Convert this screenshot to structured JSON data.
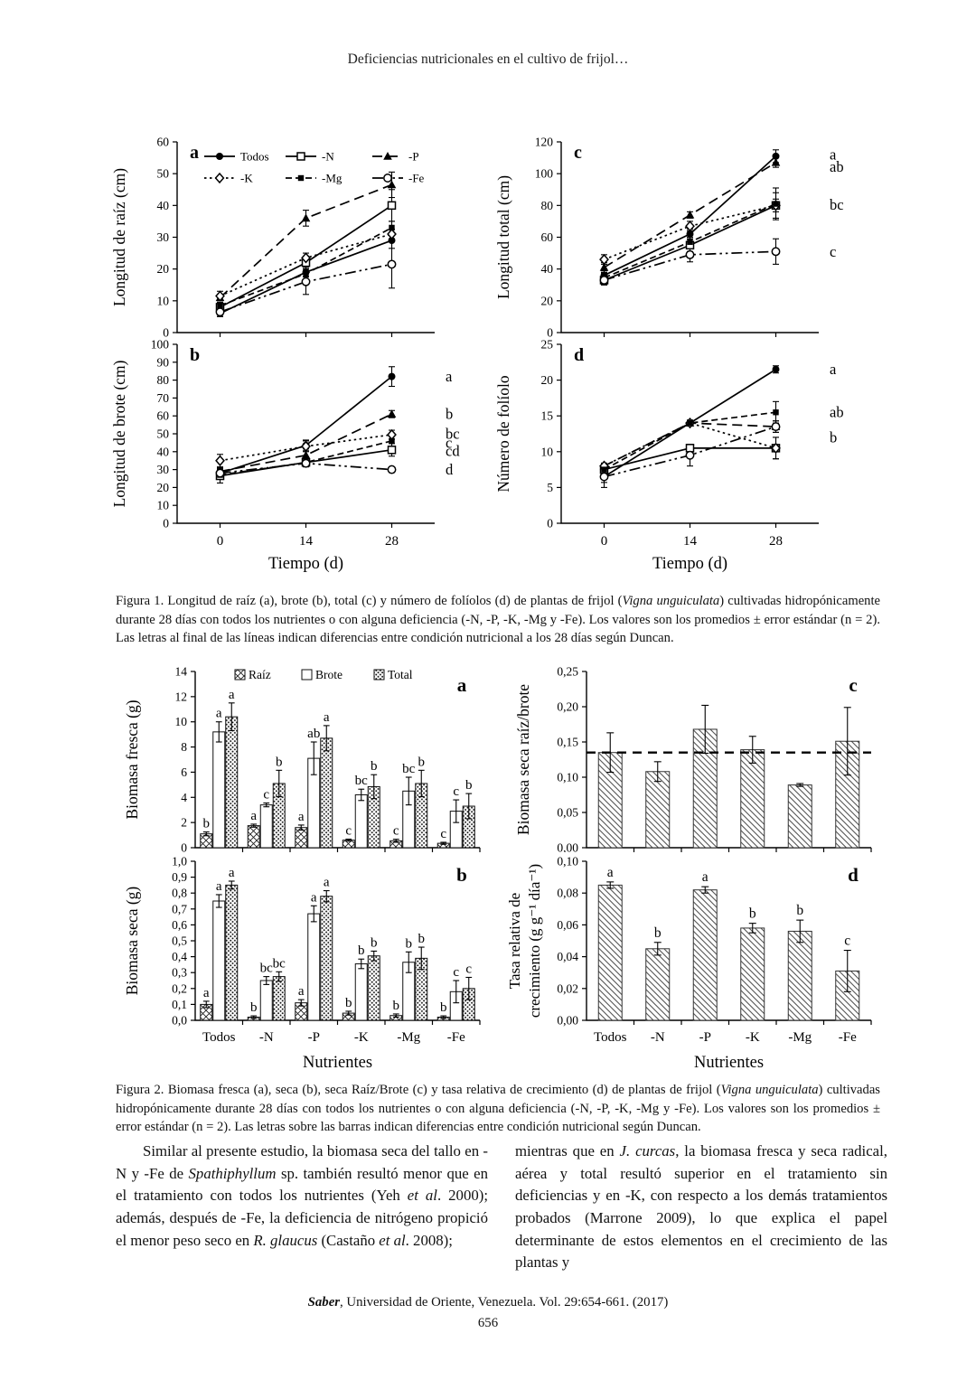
{
  "header": {
    "running_title": "Deficiencias nutricionales en el cultivo de frijol…"
  },
  "figure1": {
    "caption": [
      {
        "t": "Figura 1. Longitud de raíz (a), brote (b), total (c) y número de folíolos (d) de plantas de frijol ("
      },
      {
        "t": "Vigna unguiculata",
        "i": true
      },
      {
        "t": ") cultivadas hidropónicamente durante 28 días con todos los nutrientes o con alguna deficiencia (-N, -P, -K, -Mg y -Fe). Los valores son los promedios ± error estándar (n = 2). Las letras al final de las líneas indican diferencias entre condición nutricional a los 28 días según Duncan."
      }
    ]
  },
  "figure2": {
    "caption": [
      {
        "t": "Figura 2. Biomasa fresca (a), seca (b), seca Raíz/Brote (c) y tasa relativa de crecimiento (d) de plantas de frijol ("
      },
      {
        "t": "Vigna unguiculata",
        "i": true
      },
      {
        "t": ") cultivadas hidropónicamente durante 28 días con todos los nutrientes o con alguna deficiencia (-N, -P, -K, -Mg y -Fe). Los valores son los promedios ± error estándar (n = 2). Las letras sobre las barras indican diferencias entre condición nutricional según Duncan."
      }
    ]
  },
  "body": {
    "left": [
      {
        "t": "Similar al presente estudio, la biomasa seca del tallo en -N y -Fe de "
      },
      {
        "t": "Spathiphyllum",
        "i": true
      },
      {
        "t": " sp. también resultó menor que en el tratamiento con todos los nutrientes (Yeh "
      },
      {
        "t": "et al",
        "i": true
      },
      {
        "t": ". 2000); además, después de -Fe, la deficiencia de nitrógeno propició el menor peso seco en "
      },
      {
        "t": "R. glaucus",
        "i": true
      },
      {
        "t": " (Castaño "
      },
      {
        "t": "et al",
        "i": true
      },
      {
        "t": ". 2008);"
      }
    ],
    "right": [
      {
        "t": "mientras que en "
      },
      {
        "t": "J. curcas",
        "i": true
      },
      {
        "t": ", la biomasa fresca y seca radical, aérea y total resultó superior en el tratamiento sin deficiencias y en -K, con respecto a los demás tratamientos probados (Marrone 2009), lo que explica el papel determinante de estos elementos en el crecimiento de las plantas y"
      }
    ]
  },
  "footer": {
    "line": [
      {
        "t": "Saber",
        "b": true,
        "i": true
      },
      {
        "t": ", Universidad de Oriente, Venezuela. Vol. 29:654-661. (2017)"
      }
    ],
    "page_number": "656"
  },
  "chart_data": [
    {
      "figure": 1,
      "panel": "a",
      "type": "line",
      "ylabel": "Longitud de raíz (cm)",
      "ymax": 60,
      "yticks": [
        "0",
        "10",
        "20",
        "30",
        "40",
        "50",
        "60"
      ],
      "x": [
        "0",
        "14",
        "28"
      ],
      "xlabel": "Tiempo (d)",
      "show_x": false,
      "legend": true,
      "series": [
        {
          "name": "Todos",
          "marker": "circle-filled",
          "dash": "",
          "values": [
            6,
            19,
            29
          ],
          "err": [
            1,
            1.5,
            2.5
          ]
        },
        {
          "name": "-N",
          "marker": "square-open",
          "dash": "",
          "values": [
            8,
            22,
            40
          ],
          "err": [
            1,
            2,
            5
          ]
        },
        {
          "name": "-P",
          "marker": "triangle-filled",
          "dash": "11,6",
          "values": [
            11,
            36,
            46.5
          ],
          "err": [
            1,
            2.5,
            4
          ]
        },
        {
          "name": "-K",
          "marker": "diamond-open",
          "dash": "2.5,3.5",
          "values": [
            11.5,
            23.5,
            31
          ],
          "err": [
            1.5,
            1.5,
            1.5
          ]
        },
        {
          "name": "-Mg",
          "marker": "square-filled",
          "dash": "7,4",
          "values": [
            8.5,
            18.5,
            33
          ],
          "err": [
            1,
            1,
            2
          ]
        },
        {
          "name": "-Fe",
          "marker": "circle-open",
          "dash": "12,4,2.5,4,2.5,4",
          "values": [
            6.5,
            16,
            21.5
          ],
          "err": [
            1,
            4,
            7.5
          ]
        }
      ],
      "end_labels": []
    },
    {
      "figure": 1,
      "panel": "b",
      "type": "line",
      "ylabel": "Longitud de brote (cm)",
      "ymax": 100,
      "yticks": [
        "0",
        "10",
        "20",
        "30",
        "40",
        "50",
        "60",
        "70",
        "80",
        "90",
        "100"
      ],
      "x": [
        "0",
        "14",
        "28"
      ],
      "xlabel": "Tiempo (d)",
      "show_x": true,
      "legend": false,
      "series": [
        {
          "name": "Todos",
          "marker": "circle-filled",
          "dash": "",
          "values": [
            28,
            43.5,
            82
          ],
          "err": [
            2,
            3,
            5.5
          ]
        },
        {
          "name": "-N",
          "marker": "square-open",
          "dash": "",
          "values": [
            26.5,
            34,
            41
          ],
          "err": [
            4,
            2,
            3.5
          ]
        },
        {
          "name": "-P",
          "marker": "triangle-filled",
          "dash": "11,6",
          "values": [
            29,
            38,
            61
          ],
          "err": [
            2,
            3.5,
            2
          ]
        },
        {
          "name": "-K",
          "marker": "diamond-open",
          "dash": "2.5,3.5",
          "values": [
            35,
            43,
            49.5
          ],
          "err": [
            3.5,
            3,
            2.5
          ]
        },
        {
          "name": "-Mg",
          "marker": "square-filled",
          "dash": "7,4",
          "values": [
            27,
            34,
            46
          ],
          "err": [
            2,
            2,
            3
          ]
        },
        {
          "name": "-Fe",
          "marker": "circle-open",
          "dash": "12,4,2.5,4,2.5,4",
          "values": [
            28,
            33.5,
            30
          ],
          "err": [
            2,
            2,
            1.5
          ]
        }
      ],
      "end_labels": [
        {
          "t": "a",
          "v": 82
        },
        {
          "t": "b",
          "v": 61
        },
        {
          "t": "bc",
          "v": 50
        },
        {
          "t": "c",
          "v": 45
        },
        {
          "t": "cd",
          "v": 40.5
        },
        {
          "t": "d",
          "v": 30
        }
      ]
    },
    {
      "figure": 1,
      "panel": "c",
      "type": "line",
      "ylabel": "Longitud total (cm)",
      "ymax": 120,
      "yticks": [
        "0",
        "20",
        "40",
        "60",
        "80",
        "100",
        "120"
      ],
      "x": [
        "0",
        "14",
        "28"
      ],
      "xlabel": "Tiempo (d)",
      "show_x": false,
      "legend": false,
      "series": [
        {
          "name": "Todos",
          "marker": "circle-filled",
          "dash": "",
          "values": [
            36,
            62,
            111
          ],
          "err": [
            3,
            3,
            4
          ]
        },
        {
          "name": "-N",
          "marker": "square-open",
          "dash": "",
          "values": [
            33,
            55,
            80
          ],
          "err": [
            3,
            4,
            8
          ]
        },
        {
          "name": "-P",
          "marker": "triangle-filled",
          "dash": "11,6",
          "values": [
            41,
            74,
            107
          ],
          "err": [
            3,
            2,
            3
          ]
        },
        {
          "name": "-K",
          "marker": "diamond-open",
          "dash": "2.5,3.5",
          "values": [
            46,
            67,
            80
          ],
          "err": [
            3,
            3,
            4
          ]
        },
        {
          "name": "-Mg",
          "marker": "square-filled",
          "dash": "7,4",
          "values": [
            34.5,
            57,
            81
          ],
          "err": [
            3,
            3,
            10
          ]
        },
        {
          "name": "-Fe",
          "marker": "circle-open",
          "dash": "12,4,2.5,4,2.5,4",
          "values": [
            33,
            49,
            51
          ],
          "err": [
            3,
            4.5,
            8
          ]
        }
      ],
      "end_labels": [
        {
          "t": "a",
          "v": 112
        },
        {
          "t": "ab",
          "v": 104.5
        },
        {
          "t": "bc",
          "v": 80.5
        },
        {
          "t": "c",
          "v": 51
        }
      ]
    },
    {
      "figure": 1,
      "panel": "d",
      "type": "line",
      "ylabel": "Número de folíolo",
      "ymax": 25,
      "yticks": [
        "0",
        "5",
        "10",
        "15",
        "20",
        "25"
      ],
      "x": [
        "0",
        "14",
        "28"
      ],
      "xlabel": "Tiempo (d)",
      "show_x": true,
      "legend": false,
      "series": [
        {
          "name": "Todos",
          "marker": "circle-filled",
          "dash": "",
          "values": [
            6.5,
            14,
            21.5
          ],
          "err": [
            0.8,
            0.4,
            0.5
          ]
        },
        {
          "name": "-N",
          "marker": "square-open",
          "dash": "",
          "values": [
            7.5,
            10.5,
            10.5
          ],
          "err": [
            0.5,
            0.5,
            1.5
          ]
        },
        {
          "name": "-P",
          "marker": "triangle-filled",
          "dash": "11,6",
          "values": [
            8,
            14,
            13.5
          ],
          "err": [
            0.4,
            0.4,
            0.8
          ]
        },
        {
          "name": "-K",
          "marker": "diamond-open",
          "dash": "2.5,3.5",
          "values": [
            8,
            14,
            10.5
          ],
          "err": [
            0.4,
            0.4,
            1.5
          ]
        },
        {
          "name": "-Mg",
          "marker": "square-filled",
          "dash": "7,4",
          "values": [
            7.5,
            14,
            15.5
          ],
          "err": [
            0.5,
            0.4,
            1.5
          ]
        },
        {
          "name": "-Fe",
          "marker": "circle-open",
          "dash": "12,4,2.5,4,2.5,4",
          "values": [
            6.5,
            9.5,
            13.5
          ],
          "err": [
            1.5,
            1.5,
            0.8
          ]
        }
      ],
      "end_labels": [
        {
          "t": "a",
          "v": 21.5
        },
        {
          "t": "ab",
          "v": 15.5
        },
        {
          "t": "b",
          "v": 12
        }
      ]
    },
    {
      "figure": 2,
      "panel": "a",
      "type": "grouped-bar",
      "ylabel": "Biomasa fresca (g)",
      "ymax": 14,
      "yticks": [
        "0",
        "2",
        "4",
        "6",
        "8",
        "10",
        "12",
        "14"
      ],
      "categories": [
        "Todos",
        "-N",
        "-P",
        "-K",
        "-Mg",
        "-Fe"
      ],
      "xlabel": "Nutrientes",
      "show_x": false,
      "legend": [
        "Raíz",
        "Brote",
        "Total"
      ],
      "series": [
        {
          "name": "Raíz",
          "pattern": "cross",
          "values": [
            1.1,
            1.75,
            1.6,
            0.6,
            0.55,
            0.35
          ],
          "err": [
            0.15,
            0.12,
            0.2,
            0.08,
            0.12,
            0.08
          ],
          "letters": [
            "b",
            "a",
            "a",
            "c",
            "c",
            "c"
          ]
        },
        {
          "name": "Brote",
          "pattern": "none",
          "values": [
            9.2,
            3.4,
            7.1,
            4.2,
            4.5,
            2.9
          ],
          "err": [
            0.8,
            0.15,
            1.3,
            0.45,
            1.1,
            0.9
          ],
          "letters": [
            "a",
            "c",
            "ab",
            "bc",
            "bc",
            "c"
          ]
        },
        {
          "name": "Total",
          "pattern": "dots",
          "values": [
            10.4,
            5.1,
            8.7,
            4.85,
            5.1,
            3.3
          ],
          "err": [
            1.1,
            1.05,
            1.0,
            0.95,
            1.05,
            1.0
          ],
          "letters": [
            "a",
            "b",
            "a",
            "b",
            "b",
            "b"
          ]
        }
      ]
    },
    {
      "figure": 2,
      "panel": "b",
      "type": "grouped-bar",
      "ylabel": "Biomasa seca (g)",
      "ymax": 1.0,
      "yticks": [
        "0,0",
        "0,1",
        "0,2",
        "0,3",
        "0,4",
        "0,5",
        "0,6",
        "0,7",
        "0,8",
        "0,9",
        "1,0"
      ],
      "categories": [
        "Todos",
        "-N",
        "-P",
        "-K",
        "-Mg",
        "-Fe"
      ],
      "xlabel": "Nutrientes",
      "show_x": true,
      "legend": null,
      "series": [
        {
          "name": "Raíz",
          "pattern": "cross",
          "values": [
            0.1,
            0.02,
            0.11,
            0.045,
            0.03,
            0.02
          ],
          "err": [
            0.02,
            0.008,
            0.02,
            0.012,
            0.01,
            0.008
          ],
          "letters": [
            "a",
            "b",
            "a",
            "b",
            "b",
            "b"
          ]
        },
        {
          "name": "Brote",
          "pattern": "none",
          "values": [
            0.75,
            0.25,
            0.67,
            0.355,
            0.365,
            0.18
          ],
          "err": [
            0.04,
            0.025,
            0.05,
            0.03,
            0.065,
            0.07
          ],
          "letters": [
            "a",
            "bc",
            "a",
            "b",
            "b",
            "c"
          ]
        },
        {
          "name": "Total",
          "pattern": "dots",
          "values": [
            0.85,
            0.275,
            0.78,
            0.405,
            0.39,
            0.2
          ],
          "err": [
            0.025,
            0.03,
            0.035,
            0.03,
            0.07,
            0.07
          ],
          "letters": [
            "a",
            "bc",
            "a",
            "b",
            "b",
            "c"
          ]
        }
      ]
    },
    {
      "figure": 2,
      "panel": "c",
      "type": "single-bar",
      "ylabel": "Biomasa seca raíz/brote",
      "ymax": 0.25,
      "yticks": [
        "0,00",
        "0,05",
        "0,10",
        "0,15",
        "0,20",
        "0,25"
      ],
      "categories": [
        "Todos",
        "-N",
        "-P",
        "-K",
        "-Mg",
        "-Fe"
      ],
      "xlabel": "Nutrientes",
      "show_x": false,
      "values": [
        0.135,
        0.108,
        0.168,
        0.139,
        0.089,
        0.151
      ],
      "err": [
        0.028,
        0.014,
        0.034,
        0.019,
        0.002,
        0.048
      ],
      "letters": null,
      "hline": 0.135
    },
    {
      "figure": 2,
      "panel": "d",
      "type": "single-bar",
      "ylabel": [
        "Tasa relativa de",
        "crecimiento (g g⁻¹ día⁻¹)"
      ],
      "ymax": 0.1,
      "yticks": [
        "0,00",
        "0,02",
        "0,04",
        "0,06",
        "0,08",
        "0,10"
      ],
      "categories": [
        "Todos",
        "-N",
        "-P",
        "-K",
        "-Mg",
        "-Fe"
      ],
      "xlabel": "Nutrientes",
      "show_x": true,
      "values": [
        0.085,
        0.045,
        0.082,
        0.058,
        0.056,
        0.031
      ],
      "err": [
        0.002,
        0.004,
        0.002,
        0.003,
        0.007,
        0.013
      ],
      "letters": [
        "a",
        "b",
        "a",
        "b",
        "b",
        "c"
      ],
      "hline": null
    }
  ]
}
